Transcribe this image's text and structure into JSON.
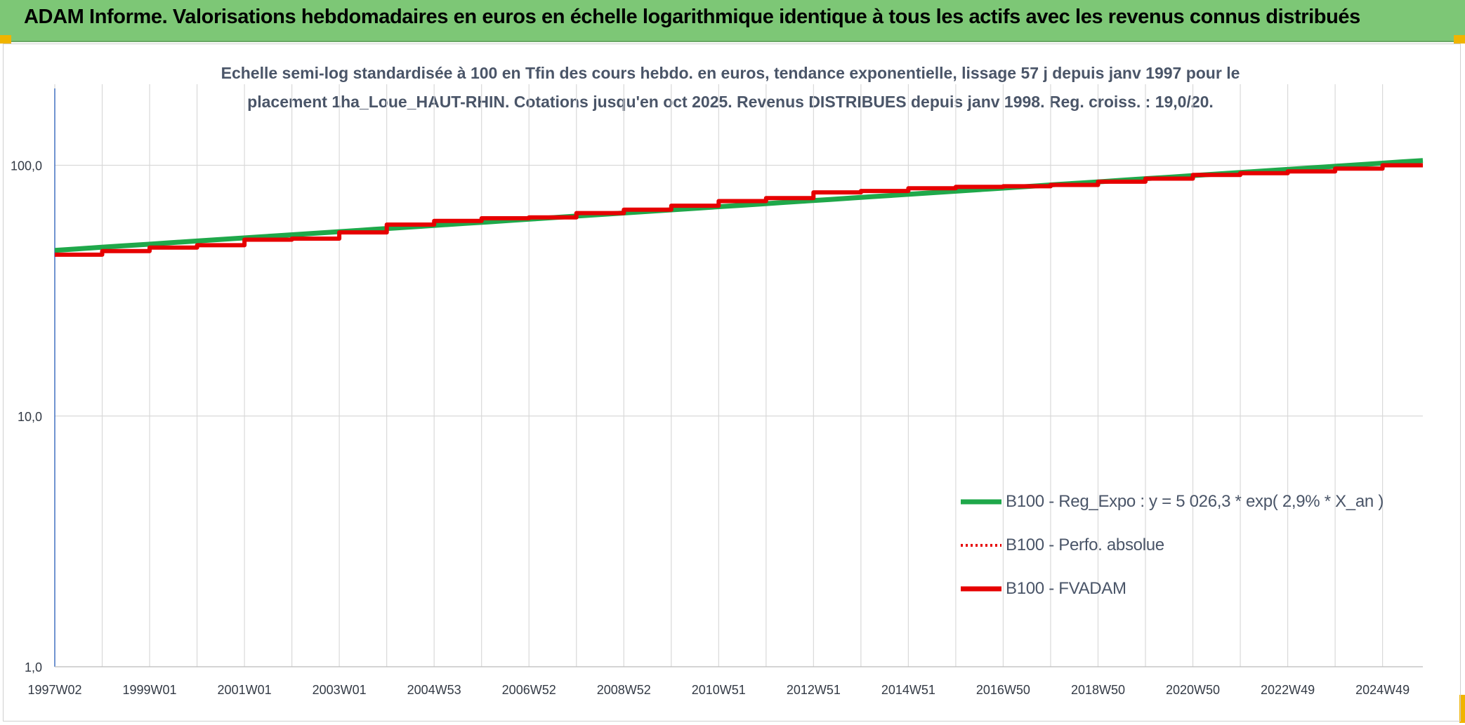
{
  "header": {
    "title": "ADAM Informe. Valorisations hebdomadaires en euros en échelle logarithmique identique à tous les actifs avec les revenus connus distribués"
  },
  "colors": {
    "header_bg": "#7dc776",
    "corner_accent": "#f0b400",
    "reg_expo": "#1fa84a",
    "perfo_absolue": "#e60000",
    "fvadam": "#e60000",
    "grid": "#d9d9d9",
    "axis": "#4472c4"
  },
  "chart_data": {
    "type": "line",
    "title_lines": [
      "Echelle semi-log standardisée à 100 en Tfin des cours hebdo. en euros, tendance exponentielle, lissage 57 j depuis janv 1997 pour le",
      "placement 1ha_Loue_HAUT-RHIN. Cotations jusqu'en oct 2025. Revenus DISTRIBUES depuis janv 1998. Reg. croiss. : 19,0/20."
    ],
    "y_scale": "log",
    "ylim": [
      1,
      200
    ],
    "y_ticks": [
      {
        "value": 1,
        "label": "1,0"
      },
      {
        "value": 10,
        "label": "10,0"
      },
      {
        "value": 100,
        "label": "100,0"
      }
    ],
    "xlim": [
      1997.0,
      2025.85
    ],
    "x_ticks": [
      {
        "value": 1997.0,
        "label": "1997W02"
      },
      {
        "value": 1999.0,
        "label": "1999W01"
      },
      {
        "value": 2001.0,
        "label": "2001W01"
      },
      {
        "value": 2003.0,
        "label": "2003W01"
      },
      {
        "value": 2005.0,
        "label": "2004W53"
      },
      {
        "value": 2007.0,
        "label": "2006W52"
      },
      {
        "value": 2009.0,
        "label": "2008W52"
      },
      {
        "value": 2011.0,
        "label": "2010W51"
      },
      {
        "value": 2013.0,
        "label": "2012W51"
      },
      {
        "value": 2015.0,
        "label": "2014W51"
      },
      {
        "value": 2017.0,
        "label": "2016W50"
      },
      {
        "value": 2019.0,
        "label": "2018W50"
      },
      {
        "value": 2021.0,
        "label": "2020W50"
      },
      {
        "value": 2023.0,
        "label": "2022W49"
      },
      {
        "value": 2025.0,
        "label": "2024W49"
      }
    ],
    "grid": true,
    "legend_position": "lower-right",
    "series": [
      {
        "name": "B100 - Reg_Expo : y = 5 026,3 * exp( 2,9% *  X_an )",
        "style": "solid-thick",
        "x": [
          1997.0,
          2025.85
        ],
        "y": [
          45.8,
          104.5
        ]
      },
      {
        "name": "B100 - Perfo. absolue",
        "style": "dotted",
        "x": [
          1997.0,
          1998.0,
          1999.0,
          2000.0,
          2001.0,
          2002.0,
          2003.0,
          2004.0,
          2005.0,
          2006.0,
          2007.0,
          2008.0,
          2009.0,
          2010.0,
          2011.0,
          2012.0,
          2013.0,
          2014.0,
          2015.0,
          2016.0,
          2017.0,
          2018.0,
          2019.0,
          2020.0,
          2021.0,
          2022.0,
          2023.0,
          2024.0,
          2025.0,
          2025.85
        ],
        "y": [
          44.0,
          45.5,
          47.0,
          48.0,
          50.5,
          51.0,
          54.0,
          58.0,
          60.0,
          61.5,
          62.0,
          64.5,
          66.5,
          69.0,
          72.0,
          74.0,
          78.0,
          79.0,
          81.0,
          82.0,
          82.5,
          83.5,
          86.0,
          88.5,
          91.5,
          93.0,
          94.5,
          97.0,
          100.0,
          100.0
        ]
      },
      {
        "name": "B100 - FVADAM",
        "style": "solid-thick",
        "x": [
          1997.0,
          1998.0,
          1999.0,
          2000.0,
          2001.0,
          2002.0,
          2003.0,
          2004.0,
          2005.0,
          2006.0,
          2007.0,
          2008.0,
          2009.0,
          2010.0,
          2011.0,
          2012.0,
          2013.0,
          2014.0,
          2015.0,
          2016.0,
          2017.0,
          2018.0,
          2019.0,
          2020.0,
          2021.0,
          2022.0,
          2023.0,
          2024.0,
          2025.0,
          2025.85
        ],
        "y": [
          44.0,
          45.5,
          47.0,
          48.0,
          50.5,
          51.0,
          54.0,
          58.0,
          60.0,
          61.5,
          62.0,
          64.5,
          66.5,
          69.0,
          72.0,
          74.0,
          78.0,
          79.0,
          81.0,
          82.0,
          82.5,
          83.5,
          86.0,
          88.5,
          91.5,
          93.0,
          94.5,
          97.0,
          100.0,
          100.0
        ]
      }
    ]
  }
}
